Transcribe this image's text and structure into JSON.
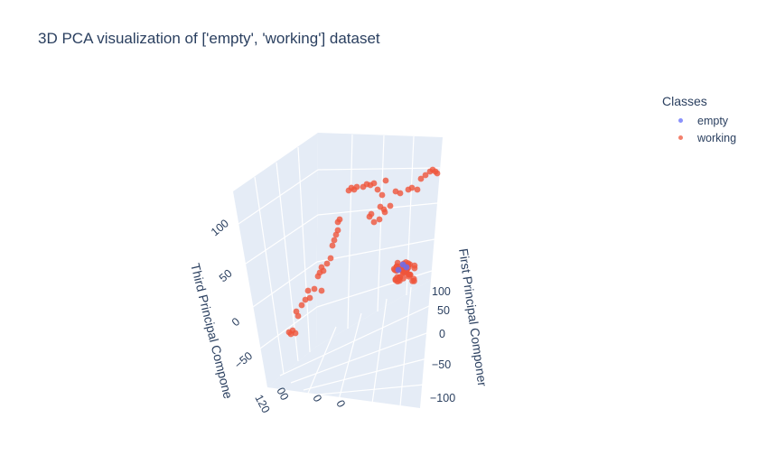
{
  "chart_data": {
    "type": "scatter",
    "title": "3D PCA visualization of ['empty', 'working'] dataset",
    "legend": {
      "title": "Classes",
      "placement": "top-right"
    },
    "axes": {
      "first_label": "First Principal Componer",
      "third_label": "Third Principal Compone",
      "first_ticks": [
        "100",
        "50",
        "0",
        "−50",
        "−100"
      ],
      "third_ticks": [
        "100",
        "50",
        "0",
        "−50"
      ],
      "second_ticks": [
        "120",
        "00",
        "0",
        "0"
      ]
    },
    "series": [
      {
        "name": "empty",
        "color": "#636efa"
      },
      {
        "name": "working",
        "color": "#ef553b"
      }
    ]
  }
}
